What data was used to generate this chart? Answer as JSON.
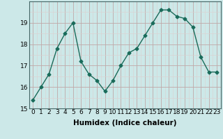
{
  "xlabel": "Humidex (Indice chaleur)",
  "x": [
    0,
    1,
    2,
    3,
    4,
    5,
    6,
    7,
    8,
    9,
    10,
    11,
    12,
    13,
    14,
    15,
    16,
    17,
    18,
    19,
    20,
    21,
    22,
    23
  ],
  "y": [
    15.4,
    16.0,
    16.6,
    17.8,
    18.5,
    19.0,
    17.2,
    16.6,
    16.3,
    15.8,
    16.3,
    17.0,
    17.6,
    17.8,
    18.4,
    19.0,
    19.6,
    19.6,
    19.3,
    19.2,
    18.8,
    17.4,
    16.7,
    16.7
  ],
  "line_color": "#1a6b5a",
  "marker": "D",
  "marker_size": 2.5,
  "bg_color": "#cce8e8",
  "grid_major_color": "#c0a8a8",
  "grid_minor_color": "#ddd0d0",
  "ylim": [
    15,
    20
  ],
  "xlim": [
    -0.5,
    23.5
  ],
  "yticks": [
    15,
    16,
    17,
    18,
    19
  ],
  "xticks": [
    0,
    1,
    2,
    3,
    4,
    5,
    6,
    7,
    8,
    9,
    10,
    11,
    12,
    13,
    14,
    15,
    16,
    17,
    18,
    19,
    20,
    21,
    22,
    23
  ],
  "tick_fontsize": 6.5,
  "xlabel_fontsize": 7.5,
  "line_width": 1.0
}
